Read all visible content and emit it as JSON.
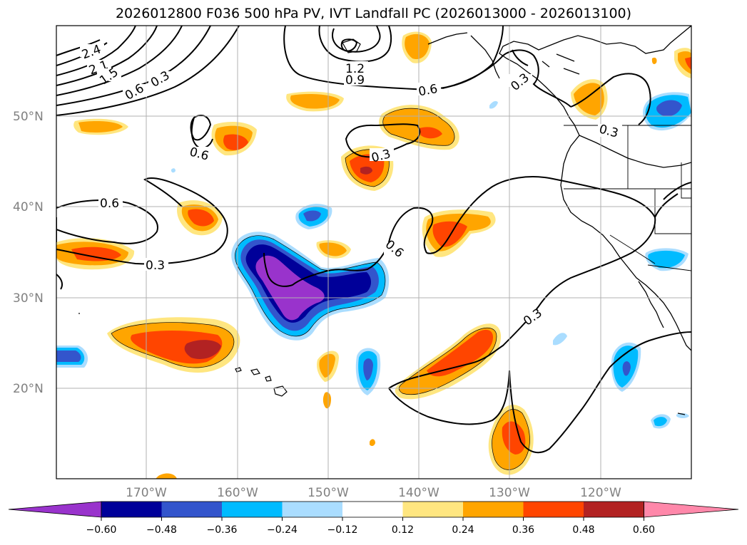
{
  "title": "2026012800 F036 500 hPa PV, IVT Landfall PC (2026013000 - 2026013100)",
  "map": {
    "lat_labels": [
      "50°N",
      "40°N",
      "30°N",
      "20°N"
    ],
    "lon_labels": [
      "170°W",
      "160°W",
      "150°W",
      "140°W",
      "130°W",
      "120°W"
    ],
    "contour_labels": [
      "2.4",
      "2.1",
      "1.5",
      "1.2",
      "0.9",
      "0.6",
      "0.3"
    ]
  },
  "colorbar": {
    "levels": [
      "-0.60",
      "-0.48",
      "-0.36",
      "-0.24",
      "-0.12",
      "0.12",
      "0.24",
      "0.36",
      "0.48",
      "0.60"
    ],
    "colors": [
      "#9933cc",
      "#000099",
      "#3355cc",
      "#00bbff",
      "#aaddff",
      "#ffffff",
      "#ffe680",
      "#ffa500",
      "#ff4500",
      "#b22222",
      "#ff88aa"
    ]
  },
  "colors": {
    "deep_purple": "#9933cc",
    "navy": "#000099",
    "blue": "#3355cc",
    "cyan": "#00bbff",
    "light_blue": "#aaddff",
    "light_yellow": "#ffe680",
    "orange": "#ffa500",
    "orange_red": "#ff4500",
    "firebrick": "#b22222",
    "pink": "#ff88aa"
  }
}
